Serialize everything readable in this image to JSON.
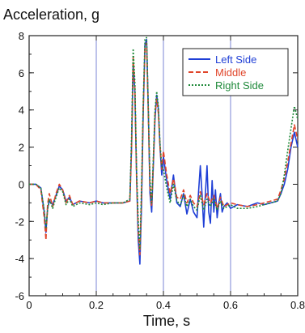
{
  "chart_data": {
    "type": "line",
    "title": "",
    "ylabel": "Acceleration, g",
    "xlabel": "Time, s",
    "xlim": [
      0,
      0.8
    ],
    "ylim": [
      -6,
      8
    ],
    "x_ticks": [
      0,
      0.2,
      0.4,
      0.6,
      0.8
    ],
    "x_tick_labels": [
      "0",
      "0.2",
      "0.4",
      "0.6",
      "0.8"
    ],
    "y_ticks": [
      -6,
      -4,
      -2,
      0,
      2,
      4,
      6,
      8
    ],
    "y_tick_labels": [
      "-6",
      "-4",
      "-2",
      "0",
      "2",
      "4",
      "6",
      "8"
    ],
    "grid": "vertical",
    "legend_position": "top-right",
    "series": [
      {
        "name": "Left Side",
        "color": "#1f3fd6",
        "dash": "solid",
        "x": [
          0,
          0.02,
          0.035,
          0.045,
          0.05,
          0.055,
          0.06,
          0.07,
          0.08,
          0.09,
          0.1,
          0.11,
          0.12,
          0.13,
          0.15,
          0.18,
          0.2,
          0.22,
          0.25,
          0.28,
          0.3,
          0.305,
          0.31,
          0.315,
          0.32,
          0.325,
          0.33,
          0.335,
          0.34,
          0.345,
          0.35,
          0.355,
          0.36,
          0.365,
          0.37,
          0.375,
          0.38,
          0.385,
          0.39,
          0.395,
          0.4,
          0.41,
          0.42,
          0.43,
          0.44,
          0.45,
          0.46,
          0.47,
          0.48,
          0.49,
          0.5,
          0.505,
          0.51,
          0.515,
          0.52,
          0.525,
          0.53,
          0.535,
          0.54,
          0.545,
          0.55,
          0.555,
          0.56,
          0.565,
          0.57,
          0.575,
          0.58,
          0.59,
          0.6,
          0.62,
          0.65,
          0.68,
          0.7,
          0.72,
          0.74,
          0.75,
          0.76,
          0.77,
          0.78,
          0.79,
          0.8
        ],
        "y": [
          0,
          0,
          -0.2,
          -1.5,
          -2.6,
          -1.3,
          -0.9,
          -1.1,
          -0.6,
          -0.1,
          -0.3,
          -0.9,
          -0.7,
          -1.1,
          -0.9,
          -1.0,
          -0.9,
          -1.0,
          -1.0,
          -1.0,
          -0.9,
          2.0,
          6.5,
          5.0,
          0.5,
          -3.0,
          -4.3,
          -1.0,
          4.0,
          7.5,
          7.8,
          4.0,
          -0.5,
          -1.5,
          1.0,
          3.5,
          4.8,
          4.0,
          2.0,
          0.5,
          1.5,
          0.2,
          -0.8,
          0.5,
          -1.0,
          -1.2,
          -0.5,
          -1.6,
          -0.8,
          -1.5,
          -1.8,
          -0.3,
          1.0,
          -0.5,
          -2.3,
          -0.5,
          1.0,
          -1.5,
          -2.1,
          0.2,
          -1.5,
          -0.3,
          -1.8,
          -1.0,
          -0.5,
          -1.5,
          -1.2,
          -1.0,
          -1.3,
          -1.1,
          -1.2,
          -1.0,
          -1.1,
          -1.0,
          -0.9,
          -0.5,
          0,
          0.8,
          2.0,
          2.8,
          2.0
        ]
      },
      {
        "name": "Middle",
        "color": "#e0452a",
        "dash": "dashed",
        "x": [
          0,
          0.02,
          0.035,
          0.045,
          0.05,
          0.055,
          0.06,
          0.07,
          0.08,
          0.09,
          0.1,
          0.11,
          0.12,
          0.13,
          0.15,
          0.18,
          0.2,
          0.22,
          0.25,
          0.28,
          0.3,
          0.305,
          0.31,
          0.315,
          0.32,
          0.325,
          0.33,
          0.335,
          0.34,
          0.345,
          0.35,
          0.355,
          0.36,
          0.365,
          0.37,
          0.375,
          0.38,
          0.385,
          0.39,
          0.395,
          0.4,
          0.41,
          0.42,
          0.43,
          0.44,
          0.45,
          0.46,
          0.47,
          0.48,
          0.49,
          0.5,
          0.51,
          0.52,
          0.53,
          0.54,
          0.55,
          0.56,
          0.57,
          0.58,
          0.6,
          0.62,
          0.65,
          0.68,
          0.7,
          0.72,
          0.74,
          0.75,
          0.76,
          0.77,
          0.78,
          0.79,
          0.8
        ],
        "y": [
          0,
          0,
          -0.3,
          -1.8,
          -3.0,
          -1.1,
          -0.5,
          -1.2,
          -0.5,
          0,
          -0.3,
          -1.0,
          -0.6,
          -1.1,
          -0.9,
          -1.0,
          -0.9,
          -1.0,
          -1.0,
          -1.0,
          -0.9,
          1.8,
          6.8,
          5.2,
          0.3,
          -2.5,
          -3.8,
          -0.5,
          4.2,
          7.3,
          7.6,
          3.8,
          -0.2,
          -1.2,
          1.2,
          3.8,
          4.6,
          3.8,
          2.0,
          0.8,
          1.8,
          0.5,
          -0.5,
          0.3,
          -0.7,
          -0.8,
          -0.3,
          -1.0,
          -0.6,
          -1.0,
          -1.2,
          -0.4,
          -1.1,
          -0.5,
          -1.0,
          -0.6,
          -1.3,
          -0.7,
          -1.2,
          -1.0,
          -1.1,
          -1.2,
          -1.1,
          -1.0,
          -0.9,
          -0.8,
          -0.3,
          0.3,
          1.2,
          2.2,
          3.2,
          2.4
        ]
      },
      {
        "name": "Right Side",
        "color": "#1f8a3a",
        "dash": "dotted",
        "x": [
          0,
          0.02,
          0.035,
          0.045,
          0.05,
          0.055,
          0.06,
          0.07,
          0.08,
          0.09,
          0.1,
          0.11,
          0.12,
          0.13,
          0.15,
          0.18,
          0.2,
          0.22,
          0.25,
          0.28,
          0.3,
          0.305,
          0.31,
          0.315,
          0.32,
          0.325,
          0.33,
          0.335,
          0.34,
          0.345,
          0.35,
          0.355,
          0.36,
          0.365,
          0.37,
          0.375,
          0.38,
          0.385,
          0.39,
          0.395,
          0.4,
          0.41,
          0.42,
          0.43,
          0.44,
          0.45,
          0.46,
          0.47,
          0.48,
          0.49,
          0.5,
          0.51,
          0.52,
          0.53,
          0.54,
          0.55,
          0.56,
          0.57,
          0.58,
          0.6,
          0.62,
          0.65,
          0.68,
          0.7,
          0.72,
          0.74,
          0.75,
          0.76,
          0.77,
          0.78,
          0.79,
          0.8
        ],
        "y": [
          0,
          0,
          -0.2,
          -1.4,
          -2.4,
          -1.4,
          -0.8,
          -1.3,
          -0.7,
          -0.2,
          -0.4,
          -1.1,
          -0.8,
          -1.2,
          -1.0,
          -1.1,
          -1.0,
          -1.1,
          -1.0,
          -1.0,
          -0.8,
          2.5,
          7.3,
          5.5,
          0.8,
          -2.0,
          -3.5,
          0,
          4.5,
          7.8,
          7.9,
          4.2,
          0.2,
          -1.0,
          1.4,
          4.0,
          5.0,
          4.2,
          2.2,
          1.0,
          0.8,
          -0.2,
          -1.0,
          0,
          -0.9,
          -1.1,
          -0.6,
          -1.2,
          -0.8,
          -1.2,
          -1.4,
          -0.6,
          -1.4,
          -0.8,
          -1.2,
          -0.8,
          -1.4,
          -0.9,
          -1.3,
          -1.1,
          -1.3,
          -1.3,
          -1.2,
          -1.1,
          -1.0,
          -0.9,
          -0.5,
          0.5,
          1.8,
          3.0,
          4.2,
          3.5
        ]
      }
    ]
  }
}
